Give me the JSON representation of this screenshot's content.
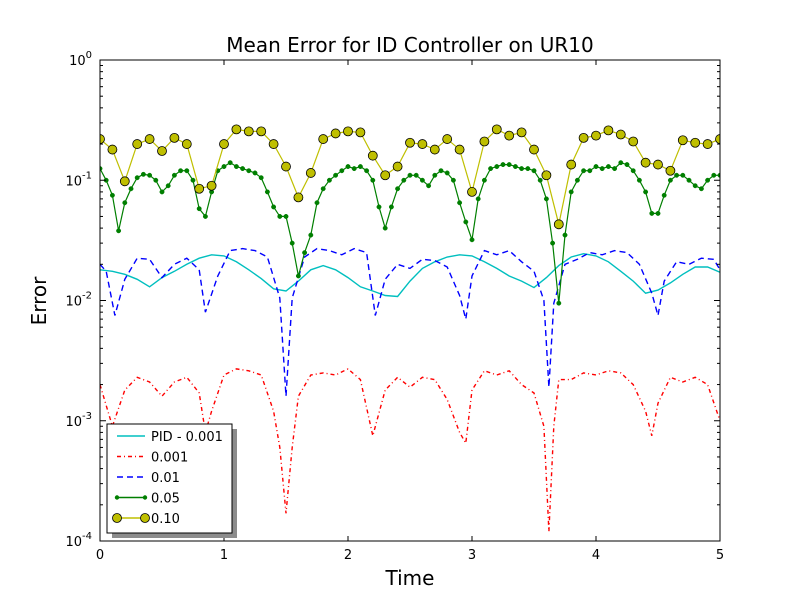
{
  "chart_data": {
    "type": "line",
    "title": "Mean Error for ID Controller on UR10",
    "xlabel": "Time",
    "ylabel": "Error",
    "xlim": [
      0,
      5
    ],
    "ylim": [
      0.0001,
      1
    ],
    "yscale": "log",
    "grid": false,
    "legend_position": "lower-left",
    "x_ticks": [
      {
        "value": 0,
        "label": "0"
      },
      {
        "value": 1,
        "label": "1"
      },
      {
        "value": 2,
        "label": "2"
      },
      {
        "value": 3,
        "label": "3"
      },
      {
        "value": 4,
        "label": "4"
      },
      {
        "value": 5,
        "label": "5"
      }
    ],
    "y_ticks": [
      {
        "value": 1,
        "base": "10",
        "exp": "0"
      },
      {
        "value": 0.1,
        "base": "10",
        "exp": "-1"
      },
      {
        "value": 0.01,
        "base": "10",
        "exp": "-2"
      },
      {
        "value": 0.001,
        "base": "10",
        "exp": "-3"
      },
      {
        "value": 0.0001,
        "base": "10",
        "exp": "-4"
      }
    ],
    "series": [
      {
        "name": "PID - 0.001",
        "color": "#00bfbf",
        "style": "solid",
        "x": [
          0,
          0.1,
          0.2,
          0.3,
          0.4,
          0.5,
          0.6,
          0.7,
          0.8,
          0.9,
          1.0,
          1.1,
          1.2,
          1.3,
          1.4,
          1.5,
          1.6,
          1.7,
          1.8,
          1.9,
          2.0,
          2.1,
          2.2,
          2.3,
          2.4,
          2.5,
          2.6,
          2.7,
          2.8,
          2.9,
          3.0,
          3.1,
          3.2,
          3.3,
          3.4,
          3.5,
          3.6,
          3.7,
          3.8,
          3.9,
          4.0,
          4.1,
          4.2,
          4.3,
          4.4,
          4.5,
          4.6,
          4.7,
          4.8,
          4.9,
          5.0
        ],
        "y": [
          0.018,
          0.0175,
          0.0165,
          0.015,
          0.013,
          0.0155,
          0.0175,
          0.02,
          0.0225,
          0.024,
          0.0235,
          0.021,
          0.018,
          0.0152,
          0.0125,
          0.012,
          0.0145,
          0.018,
          0.0195,
          0.018,
          0.0155,
          0.013,
          0.012,
          0.011,
          0.0108,
          0.0145,
          0.0185,
          0.021,
          0.023,
          0.024,
          0.0235,
          0.021,
          0.0185,
          0.016,
          0.0145,
          0.0128,
          0.0155,
          0.0195,
          0.023,
          0.0245,
          0.0235,
          0.021,
          0.0175,
          0.0145,
          0.0115,
          0.0122,
          0.014,
          0.0165,
          0.019,
          0.019,
          0.0172
        ]
      },
      {
        "name": "0.001",
        "color": "#ff0000",
        "style": "dashdot",
        "x": [
          0,
          0.1,
          0.2,
          0.3,
          0.4,
          0.5,
          0.6,
          0.7,
          0.8,
          0.85,
          0.9,
          1.0,
          1.1,
          1.2,
          1.3,
          1.4,
          1.45,
          1.5,
          1.55,
          1.6,
          1.7,
          1.8,
          1.9,
          2.0,
          2.1,
          2.2,
          2.3,
          2.4,
          2.5,
          2.6,
          2.7,
          2.8,
          2.9,
          2.95,
          3.0,
          3.1,
          3.2,
          3.3,
          3.4,
          3.5,
          3.58,
          3.62,
          3.66,
          3.7,
          3.8,
          3.9,
          4.0,
          4.1,
          4.2,
          4.3,
          4.4,
          4.45,
          4.5,
          4.6,
          4.7,
          4.8,
          4.9,
          5.0
        ],
        "y": [
          0.002,
          0.0009,
          0.0018,
          0.0023,
          0.0021,
          0.0016,
          0.0021,
          0.0023,
          0.0017,
          0.0008,
          0.0012,
          0.0024,
          0.0027,
          0.0026,
          0.0024,
          0.0012,
          0.0006,
          0.00017,
          0.0006,
          0.0016,
          0.0024,
          0.0025,
          0.0024,
          0.0027,
          0.0022,
          0.00075,
          0.0018,
          0.0023,
          0.0019,
          0.0023,
          0.0022,
          0.0015,
          0.0008,
          0.00065,
          0.0018,
          0.0026,
          0.0024,
          0.0026,
          0.002,
          0.0017,
          0.0009,
          0.00012,
          0.0009,
          0.0022,
          0.0022,
          0.0025,
          0.0024,
          0.0026,
          0.0025,
          0.002,
          0.0012,
          0.00075,
          0.0014,
          0.0023,
          0.0021,
          0.0023,
          0.002,
          0.001
        ]
      },
      {
        "name": "0.01",
        "color": "#0000ff",
        "style": "dashed",
        "x": [
          0,
          0.05,
          0.12,
          0.2,
          0.3,
          0.4,
          0.5,
          0.6,
          0.7,
          0.8,
          0.85,
          0.95,
          1.05,
          1.15,
          1.25,
          1.35,
          1.45,
          1.5,
          1.55,
          1.65,
          1.75,
          1.85,
          1.95,
          2.05,
          2.15,
          2.22,
          2.3,
          2.4,
          2.5,
          2.6,
          2.7,
          2.8,
          2.9,
          2.95,
          3.0,
          3.1,
          3.2,
          3.3,
          3.4,
          3.5,
          3.58,
          3.62,
          3.66,
          3.75,
          3.85,
          3.95,
          4.05,
          4.15,
          4.25,
          4.35,
          4.45,
          4.5,
          4.55,
          4.65,
          4.75,
          4.85,
          4.95,
          5.0
        ],
        "y": [
          0.02,
          0.0175,
          0.0075,
          0.015,
          0.0225,
          0.022,
          0.0155,
          0.02,
          0.0225,
          0.018,
          0.008,
          0.016,
          0.026,
          0.027,
          0.026,
          0.023,
          0.0105,
          0.0016,
          0.0105,
          0.023,
          0.027,
          0.026,
          0.024,
          0.027,
          0.025,
          0.0075,
          0.015,
          0.02,
          0.0185,
          0.022,
          0.0215,
          0.019,
          0.011,
          0.007,
          0.016,
          0.026,
          0.024,
          0.026,
          0.021,
          0.0175,
          0.01,
          0.0019,
          0.0095,
          0.02,
          0.022,
          0.025,
          0.024,
          0.026,
          0.025,
          0.02,
          0.0115,
          0.0075,
          0.0145,
          0.021,
          0.02,
          0.0225,
          0.022,
          0.018
        ]
      },
      {
        "name": "0.05",
        "color": "#007f00",
        "style": "solid",
        "marker": "dot",
        "x": [
          0,
          0.05,
          0.1,
          0.15,
          0.2,
          0.25,
          0.3,
          0.35,
          0.4,
          0.45,
          0.5,
          0.55,
          0.6,
          0.65,
          0.7,
          0.75,
          0.8,
          0.85,
          0.9,
          0.95,
          1.0,
          1.05,
          1.1,
          1.15,
          1.2,
          1.25,
          1.3,
          1.35,
          1.4,
          1.45,
          1.5,
          1.55,
          1.6,
          1.65,
          1.7,
          1.75,
          1.8,
          1.85,
          1.9,
          1.95,
          2.0,
          2.05,
          2.1,
          2.15,
          2.2,
          2.25,
          2.3,
          2.35,
          2.4,
          2.45,
          2.5,
          2.55,
          2.6,
          2.65,
          2.7,
          2.75,
          2.8,
          2.85,
          2.9,
          2.95,
          3.0,
          3.05,
          3.1,
          3.15,
          3.2,
          3.25,
          3.3,
          3.35,
          3.4,
          3.45,
          3.5,
          3.55,
          3.6,
          3.65,
          3.7,
          3.75,
          3.8,
          3.85,
          3.9,
          3.95,
          4.0,
          4.05,
          4.1,
          4.15,
          4.2,
          4.25,
          4.3,
          4.35,
          4.4,
          4.45,
          4.5,
          4.55,
          4.6,
          4.65,
          4.7,
          4.75,
          4.8,
          4.85,
          4.9,
          4.95,
          5.0
        ],
        "y": [
          0.125,
          0.1,
          0.075,
          0.038,
          0.065,
          0.085,
          0.105,
          0.112,
          0.11,
          0.1,
          0.08,
          0.09,
          0.11,
          0.12,
          0.12,
          0.1,
          0.058,
          0.05,
          0.08,
          0.12,
          0.13,
          0.14,
          0.13,
          0.125,
          0.12,
          0.115,
          0.105,
          0.08,
          0.06,
          0.05,
          0.05,
          0.03,
          0.016,
          0.025,
          0.035,
          0.065,
          0.085,
          0.1,
          0.11,
          0.12,
          0.13,
          0.125,
          0.13,
          0.12,
          0.1,
          0.06,
          0.04,
          0.06,
          0.085,
          0.1,
          0.11,
          0.11,
          0.1,
          0.09,
          0.11,
          0.12,
          0.115,
          0.1,
          0.065,
          0.045,
          0.032,
          0.07,
          0.1,
          0.125,
          0.13,
          0.135,
          0.135,
          0.13,
          0.125,
          0.125,
          0.12,
          0.1,
          0.07,
          0.03,
          0.0095,
          0.035,
          0.08,
          0.1,
          0.12,
          0.12,
          0.13,
          0.125,
          0.13,
          0.125,
          0.14,
          0.135,
          0.12,
          0.1,
          0.08,
          0.053,
          0.053,
          0.075,
          0.1,
          0.11,
          0.11,
          0.1,
          0.09,
          0.085,
          0.1,
          0.11,
          0.11
        ]
      },
      {
        "name": "0.10",
        "color": "#bfbf00",
        "style": "solid",
        "marker": "circle",
        "x": [
          0,
          0.1,
          0.2,
          0.3,
          0.4,
          0.5,
          0.6,
          0.7,
          0.8,
          0.9,
          1.0,
          1.1,
          1.2,
          1.3,
          1.4,
          1.5,
          1.6,
          1.7,
          1.8,
          1.9,
          2.0,
          2.1,
          2.2,
          2.3,
          2.4,
          2.5,
          2.6,
          2.7,
          2.8,
          2.9,
          3.0,
          3.1,
          3.2,
          3.3,
          3.4,
          3.5,
          3.6,
          3.7,
          3.8,
          3.9,
          4.0,
          4.1,
          4.2,
          4.3,
          4.4,
          4.5,
          4.6,
          4.7,
          4.8,
          4.9,
          5.0
        ],
        "y": [
          0.22,
          0.18,
          0.098,
          0.2,
          0.22,
          0.175,
          0.225,
          0.2,
          0.085,
          0.09,
          0.2,
          0.265,
          0.255,
          0.255,
          0.2,
          0.13,
          0.072,
          0.115,
          0.22,
          0.245,
          0.255,
          0.25,
          0.16,
          0.11,
          0.13,
          0.205,
          0.2,
          0.18,
          0.22,
          0.18,
          0.08,
          0.21,
          0.265,
          0.235,
          0.25,
          0.18,
          0.11,
          0.043,
          0.135,
          0.225,
          0.235,
          0.26,
          0.24,
          0.21,
          0.14,
          0.135,
          0.12,
          0.215,
          0.205,
          0.2,
          0.22
        ]
      }
    ]
  }
}
